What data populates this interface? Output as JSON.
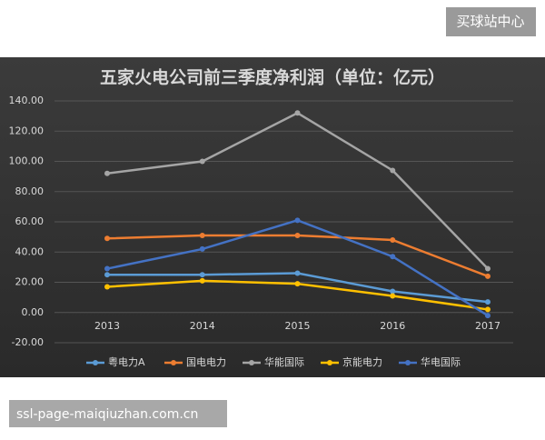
{
  "badge": "买球站中心",
  "watermark": "ssl-page-maiqiuzhan.com.cn",
  "chart_data": {
    "type": "line",
    "title": "五家火电公司前三季度净利润（单位：亿元）",
    "categories": [
      "2013",
      "2014",
      "2015",
      "2016",
      "2017"
    ],
    "series": [
      {
        "name": "粤电力A",
        "color": "#5b9bd5",
        "values": [
          25,
          25,
          26,
          14,
          7
        ]
      },
      {
        "name": "国电电力",
        "color": "#ed7d31",
        "values": [
          49,
          51,
          51,
          48,
          24
        ]
      },
      {
        "name": "华能国际",
        "color": "#a5a5a5",
        "values": [
          92,
          100,
          132,
          94,
          29
        ]
      },
      {
        "name": "京能电力",
        "color": "#ffc000",
        "values": [
          17,
          21,
          19,
          11,
          2
        ]
      },
      {
        "name": "华电国际",
        "color": "#4472c4",
        "values": [
          29,
          42,
          61,
          37,
          -2
        ]
      }
    ],
    "ylim": [
      -20,
      140
    ],
    "yticks": [
      {
        "value": -20,
        "label": "-20.00"
      },
      {
        "value": 0,
        "label": "0.00"
      },
      {
        "value": 20,
        "label": "20.00"
      },
      {
        "value": 40,
        "label": "40.00"
      },
      {
        "value": 60,
        "label": "60.00"
      },
      {
        "value": 80,
        "label": "80.00"
      },
      {
        "value": 100,
        "label": "100.00"
      },
      {
        "value": 120,
        "label": "120.00"
      },
      {
        "value": 140,
        "label": "140.00"
      }
    ],
    "grid": true
  }
}
